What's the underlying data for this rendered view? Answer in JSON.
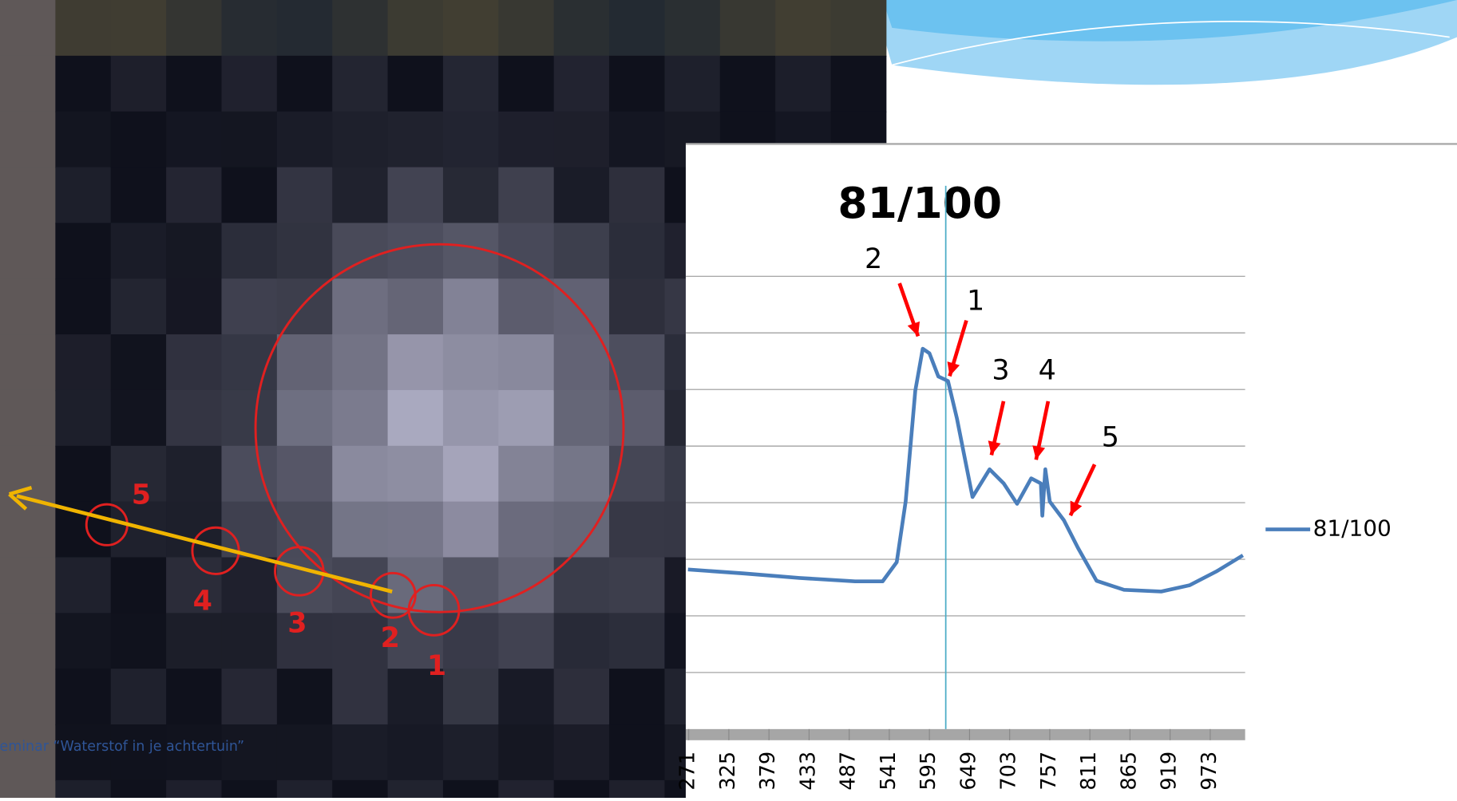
{
  "chart_data": {
    "type": "line",
    "title": "81/100",
    "series": [
      {
        "name": "81/100",
        "color": "#4a7ebb",
        "x": [
          270,
          345,
          420,
          495,
          532,
          551,
          563,
          576,
          586,
          595,
          607,
          620,
          632,
          653,
          676,
          695,
          713,
          732,
          745,
          747,
          751,
          757,
          776,
          795,
          820,
          857,
          907,
          945,
          982,
          1017
        ],
        "values": [
          2.82,
          2.75,
          2.67,
          2.61,
          2.61,
          2.95,
          4.02,
          5.98,
          6.72,
          6.64,
          6.23,
          6.15,
          5.49,
          4.1,
          4.59,
          4.34,
          3.98,
          4.43,
          4.34,
          3.77,
          4.59,
          4.02,
          3.69,
          3.2,
          2.62,
          2.46,
          2.43,
          2.54,
          2.79,
          3.07
        ]
      }
    ],
    "xlim": [
      267,
      1020
    ],
    "xticks": [
      271,
      325,
      379,
      433,
      487,
      541,
      595,
      649,
      703,
      757,
      811,
      865,
      919,
      973
    ],
    "ylim": [
      0,
      8.5
    ],
    "yticks": [
      1,
      2,
      3,
      4,
      5,
      6,
      7,
      8
    ],
    "grid": true,
    "marker_x": 617,
    "annotations": [
      "2",
      "1",
      "3",
      "4",
      "5"
    ]
  },
  "image_labels": [
    "1",
    "2",
    "3",
    "4",
    "5"
  ],
  "footer": "Seminar “Waterstof in je achtertuin”"
}
